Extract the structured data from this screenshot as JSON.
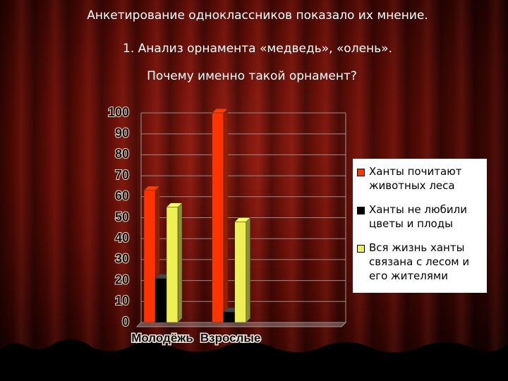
{
  "chart_data": {
    "type": "bar",
    "title": "Анкетирование одноклассников показало их мнение.",
    "subtitle": "1. Анализ орнамента «медведь», «олень».",
    "question": "Почему именно такой орнамент?",
    "categories": [
      "Молодёжь",
      "Взрослые",
      null
    ],
    "series": [
      {
        "name": "Ханты почитают животных леса",
        "color": "#ff3300",
        "values": [
          63,
          100,
          null
        ]
      },
      {
        "name": "Ханты не любили цветы и плоды",
        "color": "#000000",
        "values": [
          21,
          5,
          null
        ]
      },
      {
        "name": "Вся жизнь ханты связана с лесом и его жителями",
        "color": "#eeee55",
        "values": [
          55,
          48,
          null
        ]
      }
    ],
    "ylim": [
      0,
      100
    ],
    "yticks": [
      0,
      10,
      20,
      30,
      40,
      50,
      60,
      70,
      80,
      90,
      100
    ],
    "grid": true
  }
}
